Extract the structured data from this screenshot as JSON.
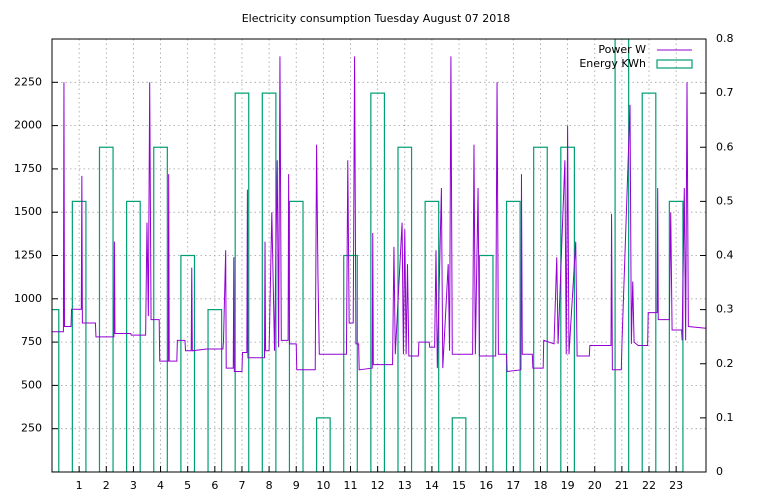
{
  "chart_data": {
    "type": "line",
    "title": "Electricity consumption Tuesday August 07 2018",
    "xlim": [
      0,
      24.1
    ],
    "xticks": [
      1,
      2,
      3,
      4,
      5,
      6,
      7,
      8,
      9,
      10,
      11,
      12,
      13,
      14,
      15,
      16,
      17,
      18,
      19,
      20,
      21,
      22,
      23
    ],
    "ylim": [
      0,
      2500
    ],
    "yticks": [
      250,
      500,
      750,
      1000,
      1250,
      1500,
      1750,
      2000,
      2250
    ],
    "y2lim": [
      0,
      0.8
    ],
    "y2ticks": [
      0,
      0.1,
      0.2,
      0.3,
      0.4,
      0.5,
      0.6,
      0.7,
      0.8
    ],
    "grid": true,
    "legend": "top-right",
    "series": [
      {
        "name": "Power W",
        "color": "#9400d3",
        "style": "line",
        "x": [
          0,
          0.42,
          0.44,
          0.46,
          0.7,
          0.72,
          1.08,
          1.1,
          1.12,
          1.6,
          1.62,
          2.28,
          2.3,
          2.32,
          2.9,
          2.92,
          3.45,
          3.5,
          3.55,
          3.6,
          3.65,
          3.95,
          3.97,
          4.28,
          4.3,
          4.32,
          4.6,
          4.62,
          4.9,
          4.92,
          5.13,
          5.15,
          5.17,
          5.7,
          5.72,
          6.3,
          6.32,
          6.4,
          6.42,
          6.68,
          6.7,
          6.72,
          7.0,
          7.02,
          7.18,
          7.2,
          7.22,
          7.83,
          7.85,
          7.87,
          8.0,
          8.1,
          8.2,
          8.3,
          8.35,
          8.4,
          8.45,
          8.7,
          8.72,
          8.75,
          9.0,
          9.02,
          9.7,
          9.75,
          9.8,
          9.85,
          10.85,
          10.9,
          10.95,
          11.1,
          11.15,
          11.2,
          11.3,
          11.32,
          11.8,
          11.82,
          11.84,
          12.55,
          12.6,
          12.65,
          12.9,
          12.95,
          13.0,
          13.05,
          13.1,
          13.15,
          13.5,
          13.52,
          13.9,
          13.92,
          14.1,
          14.15,
          14.2,
          14.35,
          14.4,
          14.6,
          14.65,
          14.7,
          14.75,
          15.5,
          15.55,
          15.6,
          15.7,
          15.75,
          16.35,
          16.4,
          16.45,
          16.75,
          16.77,
          17.28,
          17.3,
          17.33,
          17.7,
          17.72,
          18.1,
          18.12,
          18.5,
          18.6,
          18.65,
          18.9,
          18.95,
          19.0,
          19.05,
          19.3,
          19.35,
          19.8,
          19.82,
          20.6,
          20.62,
          20.65,
          20.98,
          21.0,
          21.3,
          21.35,
          21.4,
          21.45,
          21.6,
          21.95,
          21.97,
          22.3,
          22.32,
          22.34,
          22.75,
          22.8,
          22.85,
          23.2,
          23.22,
          23.3,
          23.35,
          23.4,
          23.45,
          24.1
        ],
        "values": [
          810,
          810,
          2250,
          840,
          840,
          940,
          940,
          1710,
          860,
          860,
          780,
          780,
          1330,
          800,
          800,
          790,
          790,
          1440,
          900,
          2250,
          880,
          880,
          640,
          640,
          1720,
          640,
          640,
          760,
          760,
          700,
          700,
          1180,
          700,
          710,
          710,
          710,
          760,
          1280,
          600,
          600,
          1240,
          580,
          580,
          690,
          690,
          1630,
          660,
          660,
          1330,
          700,
          700,
          1500,
          700,
          1800,
          720,
          2400,
          760,
          760,
          1720,
          740,
          740,
          590,
          590,
          1890,
          1140,
          680,
          680,
          1800,
          860,
          860,
          2400,
          740,
          740,
          590,
          600,
          1380,
          620,
          620,
          1300,
          680,
          1440,
          680,
          1400,
          680,
          1200,
          670,
          670,
          750,
          750,
          720,
          720,
          1280,
          600,
          1640,
          600,
          1200,
          700,
          2400,
          680,
          680,
          1890,
          680,
          1640,
          670,
          670,
          2250,
          680,
          680,
          580,
          590,
          1720,
          680,
          680,
          600,
          600,
          760,
          740,
          1240,
          740,
          1800,
          680,
          2000,
          680,
          1330,
          670,
          670,
          730,
          730,
          1490,
          590,
          590,
          730,
          2120,
          740,
          1100,
          750,
          730,
          730,
          920,
          920,
          1640,
          880,
          880,
          1500,
          820,
          820,
          760,
          1640,
          760,
          2250,
          840,
          830
        ]
      },
      {
        "name": "Energy KWh",
        "color": "#009e73",
        "style": "boxes",
        "axis": "y2",
        "box_width": 0.5,
        "x": [
          0,
          1,
          2,
          3,
          4,
          5,
          6,
          7,
          8,
          9,
          10,
          11,
          12,
          13,
          14,
          15,
          16,
          17,
          18,
          19,
          20,
          21,
          22,
          23
        ],
        "values": [
          0.3,
          0.5,
          0.6,
          0.5,
          0.6,
          0.4,
          0.3,
          0.7,
          0.7,
          0.5,
          0.1,
          0.4,
          0.7,
          0.6,
          0.5,
          0.1,
          0.4,
          0.5,
          0.6,
          0.6,
          0,
          0.8,
          0.7,
          0.5
        ]
      }
    ]
  }
}
